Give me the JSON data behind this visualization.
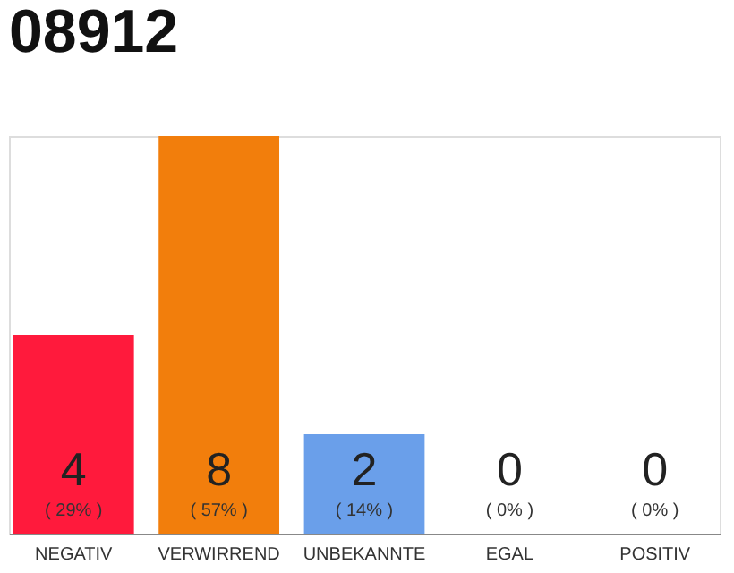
{
  "chart_data": {
    "type": "bar",
    "title": "08912",
    "categories": [
      "NEGATIV",
      "VERWIRREND",
      "UNBEKANNTE",
      "EGAL",
      "POSITIV"
    ],
    "values": [
      4,
      8,
      2,
      0,
      0
    ],
    "colors": [
      "#ff1a3c",
      "#f27e0c",
      "#6a9fea",
      "#ff1a3c",
      "#ff1a3c"
    ],
    "data_labels": true,
    "annotations": [
      "( 29% )",
      "( 57% )",
      "( 14% )",
      "( 0% )",
      "( 0% )"
    ]
  }
}
